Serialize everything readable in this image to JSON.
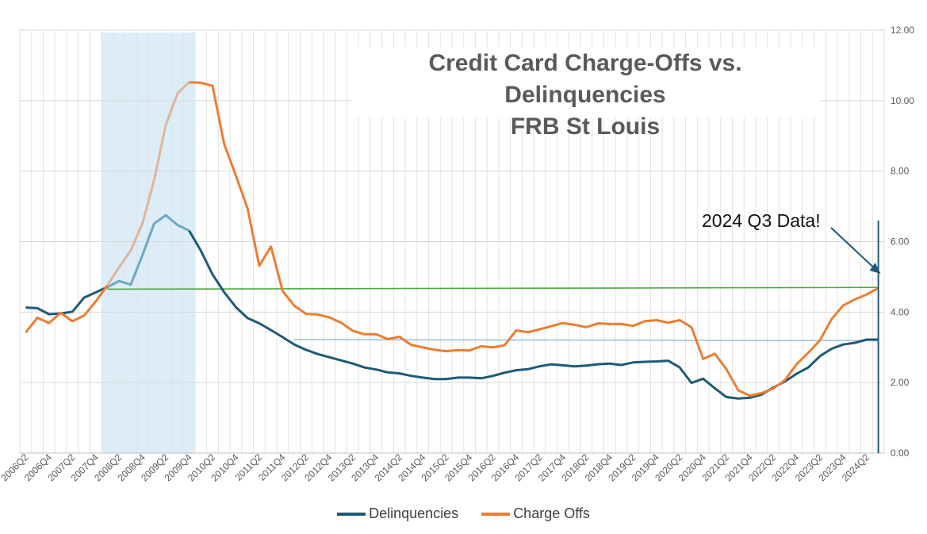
{
  "chart_data": {
    "type": "line",
    "title": "Credit Card Charge-Offs vs. Delinquencies",
    "subtitle": "FRB St Louis",
    "ylim": [
      0,
      12
    ],
    "yticks": [
      "0.00",
      "2.00",
      "4.00",
      "6.00",
      "8.00",
      "10.00",
      "12.00"
    ],
    "y_axis_side": "right",
    "grid": true,
    "legend_position": "bottom",
    "x": [
      "2006Q2",
      "2006Q3",
      "2006Q4",
      "2007Q1",
      "2007Q2",
      "2007Q3",
      "2007Q4",
      "2008Q1",
      "2008Q2",
      "2008Q3",
      "2008Q4",
      "2009Q1",
      "2009Q2",
      "2009Q3",
      "2009Q4",
      "2010Q1",
      "2010Q2",
      "2010Q3",
      "2010Q4",
      "2011Q1",
      "2011Q2",
      "2011Q3",
      "2011Q4",
      "2012Q1",
      "2012Q2",
      "2012Q3",
      "2012Q4",
      "2013Q1",
      "2013Q2",
      "2013Q3",
      "2013Q4",
      "2014Q1",
      "2014Q2",
      "2014Q3",
      "2014Q4",
      "2015Q1",
      "2015Q2",
      "2015Q3",
      "2015Q4",
      "2016Q1",
      "2016Q2",
      "2016Q3",
      "2016Q4",
      "2017Q1",
      "2017Q2",
      "2017Q3",
      "2017Q4",
      "2018Q1",
      "2018Q2",
      "2018Q3",
      "2018Q4",
      "2019Q1",
      "2019Q2",
      "2019Q3",
      "2019Q4",
      "2020Q1",
      "2020Q2",
      "2020Q3",
      "2020Q4",
      "2021Q1",
      "2021Q2",
      "2021Q3",
      "2021Q4",
      "2022Q1",
      "2022Q2",
      "2022Q3",
      "2022Q4",
      "2023Q1",
      "2023Q2",
      "2023Q3",
      "2023Q4",
      "2024Q1",
      "2024Q2",
      "2024Q3"
    ],
    "x_tick_labels": [
      "2006Q2",
      "2006Q4",
      "2007Q2",
      "2007Q4",
      "2008Q2",
      "2008Q4",
      "2009Q2",
      "2009Q4",
      "2010Q2",
      "2010Q4",
      "2011Q2",
      "2011Q4",
      "2012Q2",
      "2012Q4",
      "2013Q2",
      "2013Q4",
      "2014Q2",
      "2014Q4",
      "2015Q2",
      "2015Q4",
      "2016Q2",
      "2016Q4",
      "2017Q2",
      "2017Q4",
      "2018Q2",
      "2018Q4",
      "2019Q2",
      "2019Q4",
      "2020Q2",
      "2020Q4",
      "2021Q2",
      "2021Q4",
      "2022Q2",
      "2022Q4",
      "2023Q2",
      "2023Q4",
      "2024Q2"
    ],
    "series": [
      {
        "name": "Delinquencies",
        "color": "#1e5a78",
        "values": [
          4.13,
          4.11,
          3.94,
          3.96,
          4.01,
          4.41,
          4.56,
          4.71,
          4.88,
          4.78,
          5.62,
          6.51,
          6.75,
          6.47,
          6.31,
          5.74,
          5.07,
          4.56,
          4.14,
          3.83,
          3.68,
          3.49,
          3.29,
          3.08,
          2.93,
          2.81,
          2.72,
          2.63,
          2.54,
          2.43,
          2.37,
          2.29,
          2.26,
          2.19,
          2.14,
          2.1,
          2.1,
          2.14,
          2.14,
          2.12,
          2.19,
          2.28,
          2.35,
          2.38,
          2.46,
          2.52,
          2.49,
          2.46,
          2.48,
          2.52,
          2.54,
          2.5,
          2.57,
          2.59,
          2.6,
          2.62,
          2.43,
          1.99,
          2.11,
          1.84,
          1.59,
          1.55,
          1.57,
          1.66,
          1.86,
          2.03,
          2.25,
          2.43,
          2.75,
          2.96,
          3.08,
          3.13,
          3.22,
          3.22
        ]
      },
      {
        "name": "Charge Offs",
        "color": "#ed7d31",
        "values": [
          3.42,
          3.84,
          3.69,
          3.98,
          3.74,
          3.9,
          4.3,
          4.76,
          5.27,
          5.75,
          6.52,
          7.75,
          9.31,
          10.21,
          10.52,
          10.51,
          10.42,
          8.76,
          7.87,
          6.94,
          5.31,
          5.86,
          4.6,
          4.18,
          3.95,
          3.93,
          3.85,
          3.7,
          3.47,
          3.37,
          3.37,
          3.23,
          3.3,
          3.07,
          3.0,
          2.93,
          2.89,
          2.92,
          2.91,
          3.03,
          3.0,
          3.06,
          3.48,
          3.43,
          3.51,
          3.6,
          3.69,
          3.64,
          3.57,
          3.68,
          3.66,
          3.66,
          3.61,
          3.74,
          3.77,
          3.7,
          3.77,
          3.57,
          2.67,
          2.82,
          2.38,
          1.78,
          1.63,
          1.7,
          1.83,
          2.07,
          2.52,
          2.85,
          3.2,
          3.8,
          4.19,
          4.36,
          4.5,
          4.68
        ]
      }
    ],
    "reference_lines": [
      {
        "color": "#4aa83f",
        "from_x": "2008Q1",
        "to_x": "2024Q3",
        "from_y": 4.65,
        "to_y": 4.7
      },
      {
        "color": "#9dc3e6",
        "from_x": "2012Q1",
        "to_x": "2024Q3",
        "from_y": 3.22,
        "to_y": 3.19
      }
    ],
    "recession_shading": {
      "from_x": "2008Q1",
      "to_x": "2009Q4",
      "color": "#dcedf7"
    },
    "annotation": {
      "text": "2024 Q3 Data!",
      "points_to_x": "2024Q3",
      "color": "#1e5a78"
    }
  }
}
